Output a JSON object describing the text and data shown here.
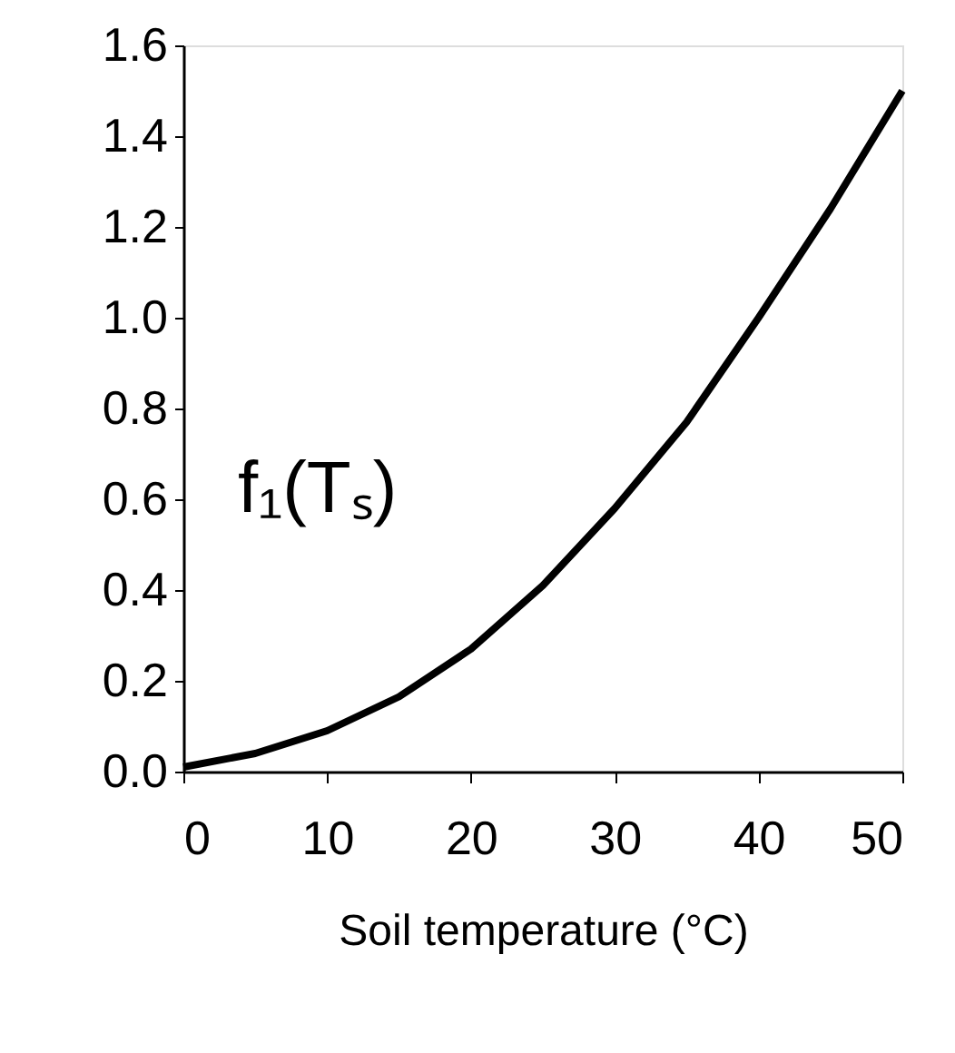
{
  "chart_data": {
    "type": "line",
    "xlabel": "Soil temperature (°C)",
    "x": [
      0,
      5,
      10,
      15,
      20,
      25,
      30,
      35,
      40,
      45,
      50
    ],
    "series": [
      {
        "color": "#000000",
        "values": [
          0.01,
          0.04,
          0.09,
          0.165,
          0.27,
          0.41,
          0.58,
          0.77,
          1.0,
          1.24,
          1.5
        ]
      }
    ],
    "xlim": [
      0,
      50
    ],
    "xticks": [
      0,
      10,
      20,
      30,
      40,
      50
    ],
    "ylim": [
      0,
      1.6
    ],
    "yticks": [
      {
        "value": 0,
        "label": "0.0"
      },
      {
        "value": 0.2,
        "label": "0.2"
      },
      {
        "value": 0.4,
        "label": "0.4"
      },
      {
        "value": 0.6,
        "label": "0.6"
      },
      {
        "value": 0.8,
        "label": "0.8"
      },
      {
        "value": 1.0,
        "label": "1.0"
      },
      {
        "value": 1.2,
        "label": "1.2"
      },
      {
        "value": 1.4,
        "label": "1.4"
      },
      {
        "value": 1.6,
        "label": "1.6"
      }
    ],
    "annotations": [
      "f₁(Tₛ)"
    ],
    "grid": false,
    "marker": "none",
    "line_style": "solid"
  }
}
